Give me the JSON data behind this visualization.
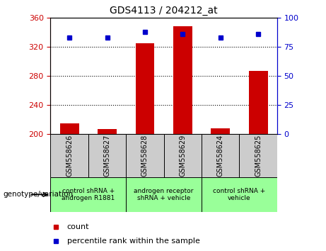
{
  "title": "GDS4113 / 204212_at",
  "samples": [
    "GSM558626",
    "GSM558627",
    "GSM558628",
    "GSM558629",
    "GSM558624",
    "GSM558625"
  ],
  "count_values": [
    215,
    207,
    325,
    348,
    208,
    287
  ],
  "percentile_values": [
    83,
    83,
    88,
    86,
    83,
    86
  ],
  "ylim_left": [
    200,
    360
  ],
  "ylim_right": [
    0,
    100
  ],
  "yticks_left": [
    200,
    240,
    280,
    320,
    360
  ],
  "yticks_right": [
    0,
    25,
    50,
    75,
    100
  ],
  "bar_color": "#cc0000",
  "dot_color": "#0000cc",
  "group_box_color": "#99ff99",
  "sample_box_color": "#cccccc",
  "left_axis_color": "#cc0000",
  "right_axis_color": "#0000cc",
  "legend_count_label": "count",
  "legend_percentile_label": "percentile rank within the sample",
  "genotype_label": "genotype/variation",
  "group_ranges": [
    [
      0,
      1,
      "control shRNA +\nandrogen R1881"
    ],
    [
      2,
      3,
      "androgen receptor\nshRNA + vehicle"
    ],
    [
      4,
      5,
      "control shRNA +\nvehicle"
    ]
  ]
}
